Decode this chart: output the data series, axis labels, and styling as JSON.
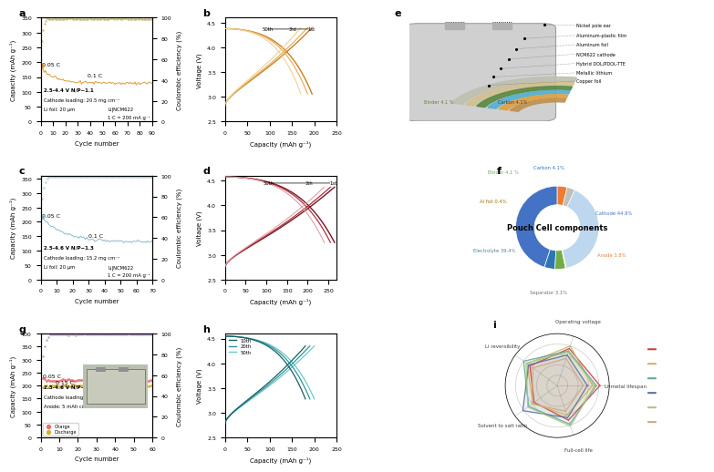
{
  "panel_a": {
    "label": "a",
    "capacity_start": 180,
    "capacity_end": 130,
    "xmax": 90,
    "ylabel_left": "Capacity (mAh g⁻¹)",
    "ylabel_right": "Coulombic efficiency (%)",
    "xlabel": "Cycle number",
    "label_05C": "0.05 C",
    "label_01C": "0.1 C",
    "color_main": "#D4922A",
    "color_ce": "#C8B87A",
    "ann1": "2.5-4.4 V N/P~1.1",
    "ann2": "Cathode loading: 20.5 mg cm⁻¹",
    "ann3": "Li foil: 20 μm",
    "ann4": "Li|NCM622",
    "ann5": "1 C = 200 mA g⁻¹"
  },
  "panel_b": {
    "label": "b",
    "xlabel": "Capacity (mAh g⁻¹)",
    "ylabel": "Voltage (V)",
    "xmax": 250,
    "ymin": 2.5,
    "ymax": 4.6,
    "color_dark": "#C88020",
    "color_mid": "#E8B060",
    "color_light": "#F0D090"
  },
  "panel_c": {
    "label": "c",
    "capacity_start": 215,
    "capacity_end": 130,
    "xmax": 70,
    "ylabel_left": "Capacity (mAh g⁻¹)",
    "ylabel_right": "Coulombic efficiency (%)",
    "xlabel": "Cycle number",
    "label_05C": "0.05 C",
    "label_01C": "0.1 C",
    "color_main": "#80B0C8",
    "color_ce": "#A8C8D8",
    "ann1": "2.5-4.6 V N/P~1.3",
    "ann2": "Cathode loading: 15.2 mg cm⁻¹",
    "ann3": "Li foil: 20 μm",
    "ann4": "Li|NCM622",
    "ann5": "1 C = 200 mA g⁻¹"
  },
  "panel_d": {
    "label": "d",
    "xlabel": "Capacity (mAh g⁻¹)",
    "ylabel": "Voltage (V)",
    "xmax": 270,
    "ymin": 2.5,
    "ymax": 4.6,
    "color_dark": "#7A1520",
    "color_mid": "#B03040",
    "color_light": "#E0A0A8"
  },
  "panel_e": {
    "label": "e",
    "layers": [
      "Nickel pole ear",
      "Aluminum-plastic film",
      "Aluminum foil",
      "NCM622 cathode",
      "Hybrid DOL/PDOL-TTE",
      "Metallic lithium",
      "Copper foil"
    ],
    "layer_colors": [
      "#D0D0D0",
      "#C0C0B8",
      "#5A8A50",
      "#60B8D8",
      "#E8A850",
      "#C89850",
      "#B08040"
    ]
  },
  "panel_f": {
    "label": "f",
    "title": "Pouch Cell components",
    "slices": [
      "Cathode 44.9%",
      "Carbon 4.1%",
      "Binder 4.1%",
      "Al foil 0.4%",
      "Electrolyte 39.4%",
      "Separator 3.1%",
      "Anode 3.8%"
    ],
    "values": [
      44.9,
      4.1,
      4.1,
      0.4,
      39.4,
      3.1,
      3.8
    ],
    "colors": [
      "#4472C4",
      "#2E75B6",
      "#70AD47",
      "#FFC000",
      "#BDD7EE",
      "#BFBFBF",
      "#ED7D31"
    ],
    "label_texts": [
      "Cathode 44.9%",
      "Carbon 4.1%",
      "Binder 4.1 %",
      "Al foil 0.4%",
      "Electrolyte 39.4%",
      "Separator 3.1%",
      "Anode 3.8%"
    ],
    "label_colors": [
      "#4472C4",
      "#2E75B6",
      "#70AD47",
      "#C0A000",
      "#7090A0",
      "#808080",
      "#ED7D31"
    ]
  },
  "panel_g": {
    "label": "g",
    "xmax": 60,
    "ylabel_left": "Capacity (mAh g⁻¹)",
    "ylabel_right": "Coulombic efficiency (%)",
    "xlabel": "Cycle number",
    "label_005C": "0.05 C",
    "label_015C": "0.15 C",
    "color_charge": "#E87070",
    "color_discharge": "#D4B030",
    "color_ce": "#B890C8",
    "ann1": "2.5-4.6 V N/P~1.7",
    "ann2": "Cathode loading: 14.8 mg cm⁻²",
    "ann3": "Anode: 5 mAh cm⁻²",
    "legend_charge": "Charge",
    "legend_discharge": "Discharge"
  },
  "panel_h": {
    "label": "h",
    "xlabel": "Capacity (mAh g⁻¹)",
    "ylabel": "Voltage (V)",
    "xmax": 250,
    "ymin": 2.5,
    "ymax": 4.6,
    "color_10th": "#1A6060",
    "color_20th": "#2898A0",
    "color_50th": "#70C8C8",
    "cycle_labels": [
      "10th",
      "20th",
      "50th"
    ]
  },
  "panel_i": {
    "label": "i",
    "axes": [
      "Li-metal lifespan",
      "Operating voltage",
      "Li reversibility",
      "Solvent to salt ratio",
      "Full-cell life"
    ],
    "series_colors": [
      "#C84040",
      "#D4B060",
      "#60A8A0",
      "#6070A0",
      "#A8C880",
      "#D0A880"
    ],
    "legend_colors": [
      "#C84040",
      "#D4B060",
      "#60A8A0",
      "#6070A0",
      "#A8C880",
      "#D0A880"
    ]
  }
}
